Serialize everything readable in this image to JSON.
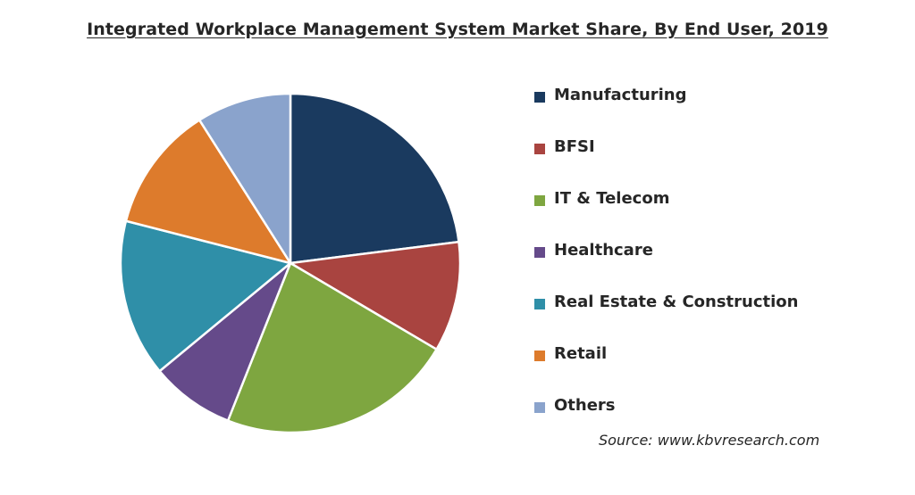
{
  "chart_data": {
    "type": "pie",
    "title": "Integrated Workplace Management System Market Share, By End User, 2019",
    "source": "Source: www.kbvresearch.com",
    "legend_position": "right",
    "slices": [
      {
        "label": "Manufacturing",
        "value": 23.0,
        "color": "#1a3a5f"
      },
      {
        "label": "BFSI",
        "value": 10.5,
        "color": "#a94440"
      },
      {
        "label": "IT & Telecom",
        "value": 22.5,
        "color": "#7ea640"
      },
      {
        "label": "Healthcare",
        "value": 8.0,
        "color": "#654a8a"
      },
      {
        "label": "Real Estate & Construction",
        "value": 15.0,
        "color": "#2f8fa8"
      },
      {
        "label": "Retail",
        "value": 12.0,
        "color": "#dd7b2c"
      },
      {
        "label": "Others",
        "value": 9.0,
        "color": "#8aa3cc"
      }
    ]
  }
}
